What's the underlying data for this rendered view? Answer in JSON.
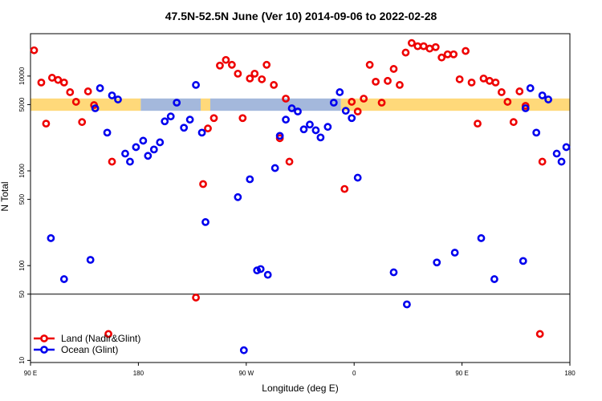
{
  "chart_data": {
    "type": "scatter",
    "title": "47.5N-52.5N June (Ver 10)   2014-09-06 to 2022-02-28",
    "x_label": "Longitude (deg E)",
    "y_label": "N Total",
    "log_y": true,
    "legend": "lower left",
    "xlim": [
      -270,
      180
    ],
    "ylim": [
      9.5,
      28000
    ],
    "xticks": [
      {
        "value": -270,
        "label": "90 E"
      },
      {
        "value": -180,
        "label": "180"
      },
      {
        "value": -90,
        "label": "90 W"
      },
      0,
      {
        "value": 90,
        "label": "90 E"
      },
      180
    ],
    "yticks": [
      10,
      50,
      100,
      500,
      1000,
      5000,
      10000
    ],
    "hline": 50,
    "mask_ylim": [
      4300,
      5800
    ],
    "mask": [
      {
        "x": [
          -270,
          -178
        ],
        "color": "#ffd97a"
      },
      {
        "x": [
          -178,
          -128
        ],
        "color": "#a4b8dc"
      },
      {
        "x": [
          -128,
          -120
        ],
        "color": "#ffd97a"
      },
      {
        "x": [
          -120,
          -11
        ],
        "color": "#a4b8dc"
      },
      {
        "x": [
          -11,
          180
        ],
        "color": "#ffd97a"
      }
    ],
    "series": [
      {
        "name": "Land (Nadir&Glint)",
        "color": "#ee0000",
        "x": [
          -267,
          -261,
          -257,
          -252,
          -247,
          -242,
          -237,
          -232,
          -227,
          -222,
          -217,
          -205,
          -202,
          -132,
          -126,
          -122,
          -117,
          -112,
          -107,
          -102,
          -97,
          -93,
          -87,
          -83,
          -77,
          -73,
          -67,
          -62,
          -57,
          -54,
          -8,
          -2,
          3,
          8,
          13,
          18,
          23,
          28,
          33,
          38,
          43,
          48,
          53,
          58,
          63,
          68,
          73,
          78,
          83,
          88,
          93,
          98,
          103,
          108,
          113,
          118,
          123,
          128,
          133,
          138,
          143,
          155,
          157
        ],
        "values": [
          18700,
          8550,
          3150,
          9600,
          9100,
          8550,
          6760,
          5350,
          3270,
          6890,
          4940,
          19,
          1250,
          46,
          725,
          2800,
          3600,
          12900,
          14800,
          13150,
          10600,
          3600,
          9430,
          10600,
          9250,
          13150,
          8060,
          2210,
          5780,
          1250,
          644,
          5350,
          4230,
          5780,
          13150,
          8720,
          5240,
          8900,
          11900,
          8060,
          17700,
          22300,
          20650,
          20650,
          19500,
          20200,
          15700,
          16960,
          16960,
          9250,
          18400,
          8550,
          3150,
          9430,
          8900,
          8550,
          6760,
          5350,
          3270,
          6890,
          4850,
          19,
          1250
        ]
      },
      {
        "name": "Ocean (Glint)",
        "color": "#0000ee",
        "x": [
          -253,
          -242,
          -220,
          -216,
          -212,
          -206,
          -202,
          -197,
          -191,
          -187,
          -182,
          -176,
          -172,
          -167,
          -162,
          -158,
          -153,
          -148,
          -142,
          -137,
          -132,
          -127,
          -124,
          -97,
          -92,
          -87,
          -81,
          -78,
          -72,
          -66,
          -62,
          -57,
          -52,
          -47,
          -42,
          -37,
          -32,
          -28,
          -22,
          -17,
          -12,
          -7,
          -2,
          3,
          33,
          44,
          69,
          84,
          106,
          117,
          141,
          143,
          147,
          152,
          157,
          162,
          169,
          173,
          177
        ],
        "values": [
          195,
          72,
          115,
          4570,
          7450,
          2530,
          6250,
          5660,
          1520,
          1250,
          1780,
          2080,
          1440,
          1680,
          2000,
          3330,
          3750,
          5240,
          2850,
          3470,
          8060,
          2530,
          288,
          528,
          12.8,
          815,
          89,
          92,
          80,
          1070,
          2340,
          3470,
          4570,
          4230,
          2740,
          3080,
          2680,
          2250,
          2910,
          5240,
          6760,
          4300,
          3600,
          847,
          85,
          39,
          108,
          137,
          195,
          72,
          112,
          4570,
          7450,
          2530,
          6250,
          5660,
          1520,
          1250,
          1780
        ]
      }
    ]
  }
}
